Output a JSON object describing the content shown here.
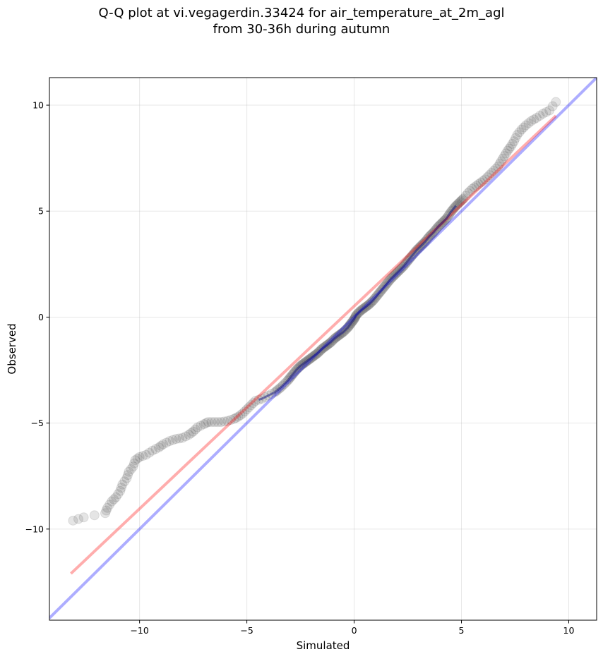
{
  "title_line1": "Q-Q plot at vi.vegagerdin.33424 for air_temperature_at_2m_agl",
  "title_line2": "from 30-36h during autumn",
  "chart_data": {
    "type": "scatter",
    "title": "Q-Q plot at vi.vegagerdin.33424 for air_temperature_at_2m_agl from 30-36h during autumn",
    "xlabel": "Simulated",
    "ylabel": "Observed",
    "xlim": [
      -14.2,
      11.3
    ],
    "ylim": [
      -14.3,
      11.3
    ],
    "xticks": [
      -10,
      -5,
      0,
      5,
      10
    ],
    "yticks": [
      -10,
      -5,
      0,
      5,
      10
    ],
    "xtick_labels": [
      "−10",
      "−5",
      "0",
      "5",
      "10"
    ],
    "ytick_labels": [
      "−10",
      "−5",
      "0",
      "5",
      "10"
    ],
    "grid": true,
    "legend": "none",
    "colors": {
      "points": "#333333",
      "identity_line": "#0000ff",
      "fit_line": "#ff0000",
      "central_observed": "#000080"
    },
    "series": [
      {
        "type": "scatter",
        "points": [
          [
            -13.1,
            -9.6
          ],
          [
            -12.6,
            -9.45
          ],
          [
            -11.6,
            -9.25
          ],
          [
            -11.5,
            -9.0
          ],
          [
            -11.3,
            -8.7
          ],
          [
            -11.1,
            -8.5
          ],
          [
            -10.9,
            -8.2
          ],
          [
            -10.8,
            -7.9
          ],
          [
            -10.6,
            -7.6
          ],
          [
            -10.5,
            -7.3
          ],
          [
            -10.3,
            -7.05
          ],
          [
            -10.2,
            -6.75
          ],
          [
            -10.0,
            -6.6
          ],
          [
            -9.7,
            -6.5
          ],
          [
            -9.4,
            -6.3
          ],
          [
            -9.1,
            -6.15
          ],
          [
            -8.9,
            -6.0
          ],
          [
            -8.6,
            -5.85
          ],
          [
            -8.3,
            -5.75
          ],
          [
            -8.0,
            -5.7
          ],
          [
            -7.7,
            -5.55
          ],
          [
            -7.5,
            -5.4
          ],
          [
            -7.3,
            -5.2
          ],
          [
            -7.0,
            -5.05
          ],
          [
            -6.8,
            -4.95
          ],
          [
            -6.5,
            -4.95
          ],
          [
            -6.2,
            -4.95
          ],
          [
            -5.9,
            -4.9
          ],
          [
            -5.6,
            -4.8
          ],
          [
            -5.4,
            -4.7
          ],
          [
            -5.2,
            -4.55
          ],
          [
            -5.0,
            -4.35
          ],
          [
            -4.8,
            -4.15
          ],
          [
            -4.6,
            -3.95
          ],
          [
            -4.3,
            -3.85
          ],
          [
            -4.0,
            -3.7
          ],
          [
            -3.7,
            -3.55
          ],
          [
            -3.4,
            -3.3
          ],
          [
            -3.1,
            -3.0
          ],
          [
            -2.9,
            -2.75
          ],
          [
            -2.7,
            -2.5
          ],
          [
            -2.5,
            -2.3
          ],
          [
            -2.3,
            -2.15
          ],
          [
            -2.1,
            -2.0
          ],
          [
            -1.9,
            -1.85
          ],
          [
            -1.7,
            -1.7
          ],
          [
            -1.5,
            -1.5
          ],
          [
            -1.3,
            -1.35
          ],
          [
            -1.1,
            -1.2
          ],
          [
            -0.9,
            -1.0
          ],
          [
            -0.7,
            -0.85
          ],
          [
            -0.5,
            -0.7
          ],
          [
            -0.3,
            -0.5
          ],
          [
            -0.15,
            -0.3
          ],
          [
            0.0,
            -0.1
          ],
          [
            0.1,
            0.1
          ],
          [
            0.3,
            0.3
          ],
          [
            0.5,
            0.45
          ],
          [
            0.7,
            0.6
          ],
          [
            0.9,
            0.8
          ],
          [
            1.1,
            1.05
          ],
          [
            1.3,
            1.3
          ],
          [
            1.5,
            1.55
          ],
          [
            1.7,
            1.8
          ],
          [
            1.9,
            2.0
          ],
          [
            2.1,
            2.2
          ],
          [
            2.3,
            2.4
          ],
          [
            2.5,
            2.65
          ],
          [
            2.7,
            2.9
          ],
          [
            2.9,
            3.15
          ],
          [
            3.1,
            3.35
          ],
          [
            3.3,
            3.55
          ],
          [
            3.5,
            3.8
          ],
          [
            3.7,
            4.0
          ],
          [
            3.9,
            4.25
          ],
          [
            4.1,
            4.45
          ],
          [
            4.3,
            4.65
          ],
          [
            4.5,
            4.95
          ],
          [
            4.7,
            5.2
          ],
          [
            4.9,
            5.4
          ],
          [
            5.1,
            5.6
          ],
          [
            5.3,
            5.85
          ],
          [
            5.5,
            6.05
          ],
          [
            5.7,
            6.2
          ],
          [
            5.9,
            6.35
          ],
          [
            6.1,
            6.5
          ],
          [
            6.3,
            6.7
          ],
          [
            6.5,
            6.9
          ],
          [
            6.7,
            7.1
          ],
          [
            6.85,
            7.35
          ],
          [
            7.0,
            7.6
          ],
          [
            7.15,
            7.85
          ],
          [
            7.3,
            8.05
          ],
          [
            7.45,
            8.3
          ],
          [
            7.6,
            8.6
          ],
          [
            7.8,
            8.85
          ],
          [
            8.0,
            9.05
          ],
          [
            8.25,
            9.25
          ],
          [
            8.5,
            9.4
          ],
          [
            8.8,
            9.6
          ],
          [
            9.1,
            9.75
          ],
          [
            9.4,
            10.15
          ]
        ]
      },
      {
        "type": "line",
        "points": [
          [
            -14.2,
            -14.2
          ],
          [
            11.3,
            11.3
          ]
        ]
      },
      {
        "type": "line",
        "points": [
          [
            -13.2,
            -12.1
          ],
          [
            9.4,
            9.5
          ]
        ]
      }
    ]
  }
}
